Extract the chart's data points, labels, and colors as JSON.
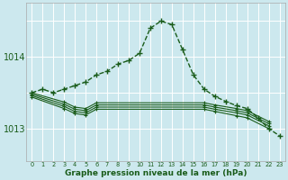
{
  "xlabel": "Graphe pression niveau de la mer (hPa)",
  "bg_color": "#cce8ee",
  "grid_color": "#ffffff",
  "line_color": "#1a5c1a",
  "ylim": [
    1012.55,
    1014.75
  ],
  "yticks": [
    1013,
    1014
  ],
  "xticks": [
    0,
    1,
    2,
    3,
    4,
    5,
    6,
    7,
    8,
    9,
    10,
    11,
    12,
    13,
    14,
    15,
    16,
    17,
    18,
    19,
    20,
    21,
    22,
    23
  ],
  "series_main": {
    "x": [
      0,
      1,
      2,
      3,
      4,
      5,
      6,
      7,
      8,
      9,
      10,
      11,
      12,
      13,
      14,
      15,
      16,
      17,
      18,
      19,
      20,
      21,
      22,
      23
    ],
    "y": [
      1013.5,
      1013.55,
      1013.5,
      1013.55,
      1013.6,
      1013.65,
      1013.75,
      1013.8,
      1013.9,
      1013.95,
      1014.05,
      1014.4,
      1014.5,
      1014.45,
      1014.1,
      1013.75,
      1013.55,
      1013.45,
      1013.38,
      1013.32,
      1013.28,
      1013.15,
      1013.0,
      1012.9
    ]
  },
  "series_flat": [
    {
      "x": [
        0,
        3,
        4,
        5,
        6,
        16,
        17,
        19,
        20,
        22
      ],
      "y": [
        1013.5,
        1013.37,
        1013.3,
        1013.28,
        1013.36,
        1013.36,
        1013.33,
        1013.28,
        1013.25,
        1013.1
      ]
    },
    {
      "x": [
        0,
        3,
        4,
        5,
        6,
        16,
        17,
        19,
        20,
        22
      ],
      "y": [
        1013.48,
        1013.34,
        1013.27,
        1013.25,
        1013.33,
        1013.33,
        1013.3,
        1013.25,
        1013.22,
        1013.07
      ]
    },
    {
      "x": [
        0,
        3,
        4,
        5,
        6,
        16,
        17,
        19,
        20,
        22
      ],
      "y": [
        1013.46,
        1013.31,
        1013.24,
        1013.22,
        1013.3,
        1013.3,
        1013.27,
        1013.22,
        1013.19,
        1013.04
      ]
    },
    {
      "x": [
        0,
        3,
        4,
        5,
        6,
        16,
        17,
        19,
        20,
        22
      ],
      "y": [
        1013.44,
        1013.28,
        1013.21,
        1013.19,
        1013.27,
        1013.27,
        1013.24,
        1013.18,
        1013.15,
        1013.0
      ]
    }
  ]
}
